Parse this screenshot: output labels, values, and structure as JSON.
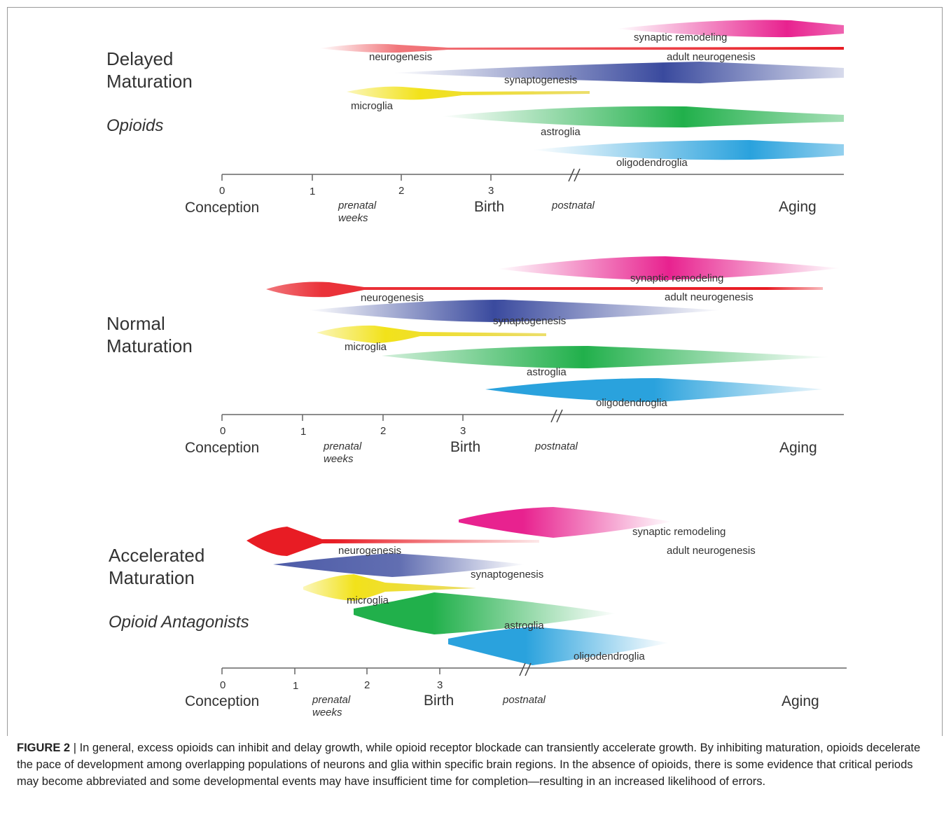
{
  "panels": [
    {
      "title_line1": "Delayed",
      "title_line2": "Maturation",
      "subtitle": "Opioids",
      "events": {
        "synaptic_remodeling": "synaptic remodeling",
        "neurogenesis": "neurogenesis",
        "adult_neurogenesis": "adult neurogenesis",
        "synaptogenesis": "synaptogenesis",
        "microglia": "microglia",
        "astroglia": "astroglia",
        "oligodendroglia": "oligodendroglia"
      },
      "axis": {
        "ticks": [
          "0",
          "1",
          "2",
          "3"
        ],
        "conception": "Conception",
        "prenatal_line1": "prenatal",
        "prenatal_line2": "weeks",
        "birth": "Birth",
        "postnatal": "postnatal",
        "aging": "Aging"
      }
    },
    {
      "title_line1": "Normal",
      "title_line2": "Maturation",
      "subtitle": "",
      "events": {
        "synaptic_remodeling": "synaptic remodeling",
        "neurogenesis": "neurogenesis",
        "adult_neurogenesis": "adult neurogenesis",
        "synaptogenesis": "synaptogenesis",
        "microglia": "microglia",
        "astroglia": "astroglia",
        "oligodendroglia": "oligodendroglia"
      },
      "axis": {
        "ticks": [
          "0",
          "1",
          "2",
          "3"
        ],
        "conception": "Conception",
        "prenatal_line1": "prenatal",
        "prenatal_line2": "weeks",
        "birth": "Birth",
        "postnatal": "postnatal",
        "aging": "Aging"
      }
    },
    {
      "title_line1": "Accelerated",
      "title_line2": "Maturation",
      "subtitle": "Opioid Antagonists",
      "events": {
        "synaptic_remodeling": "synaptic remodeling",
        "neurogenesis": "neurogenesis",
        "adult_neurogenesis": "adult neurogenesis",
        "synaptogenesis": "synaptogenesis",
        "microglia": "microglia",
        "astroglia": "astroglia",
        "oligodendroglia": "oligodendroglia"
      },
      "axis": {
        "ticks": [
          "0",
          "1",
          "2",
          "3"
        ],
        "conception": "Conception",
        "prenatal_line1": "prenatal",
        "prenatal_line2": "weeks",
        "birth": "Birth",
        "postnatal": "postnatal",
        "aging": "Aging"
      }
    }
  ],
  "colors": {
    "synaptic_remodeling": "#e8228f",
    "neurogenesis": "#e81c24",
    "synaptogenesis": "#3a4a9e",
    "microglia": "#f2e21a",
    "astroglia": "#21b04b",
    "oligodendroglia": "#2aa2dd"
  },
  "caption": {
    "label": "FIGURE 2",
    "separator": " | ",
    "text": "In general, excess opioids can inhibit and delay growth, while opioid receptor blockade can transiently accelerate growth. By inhibiting maturation, opioids decelerate the pace of development among overlapping populations of neurons and glia within specific brain regions. In the absence of opioids, there is some evidence that critical periods may become abbreviated and some developmental events may have insufficient time for completion—resulting in an increased likelihood of errors."
  }
}
